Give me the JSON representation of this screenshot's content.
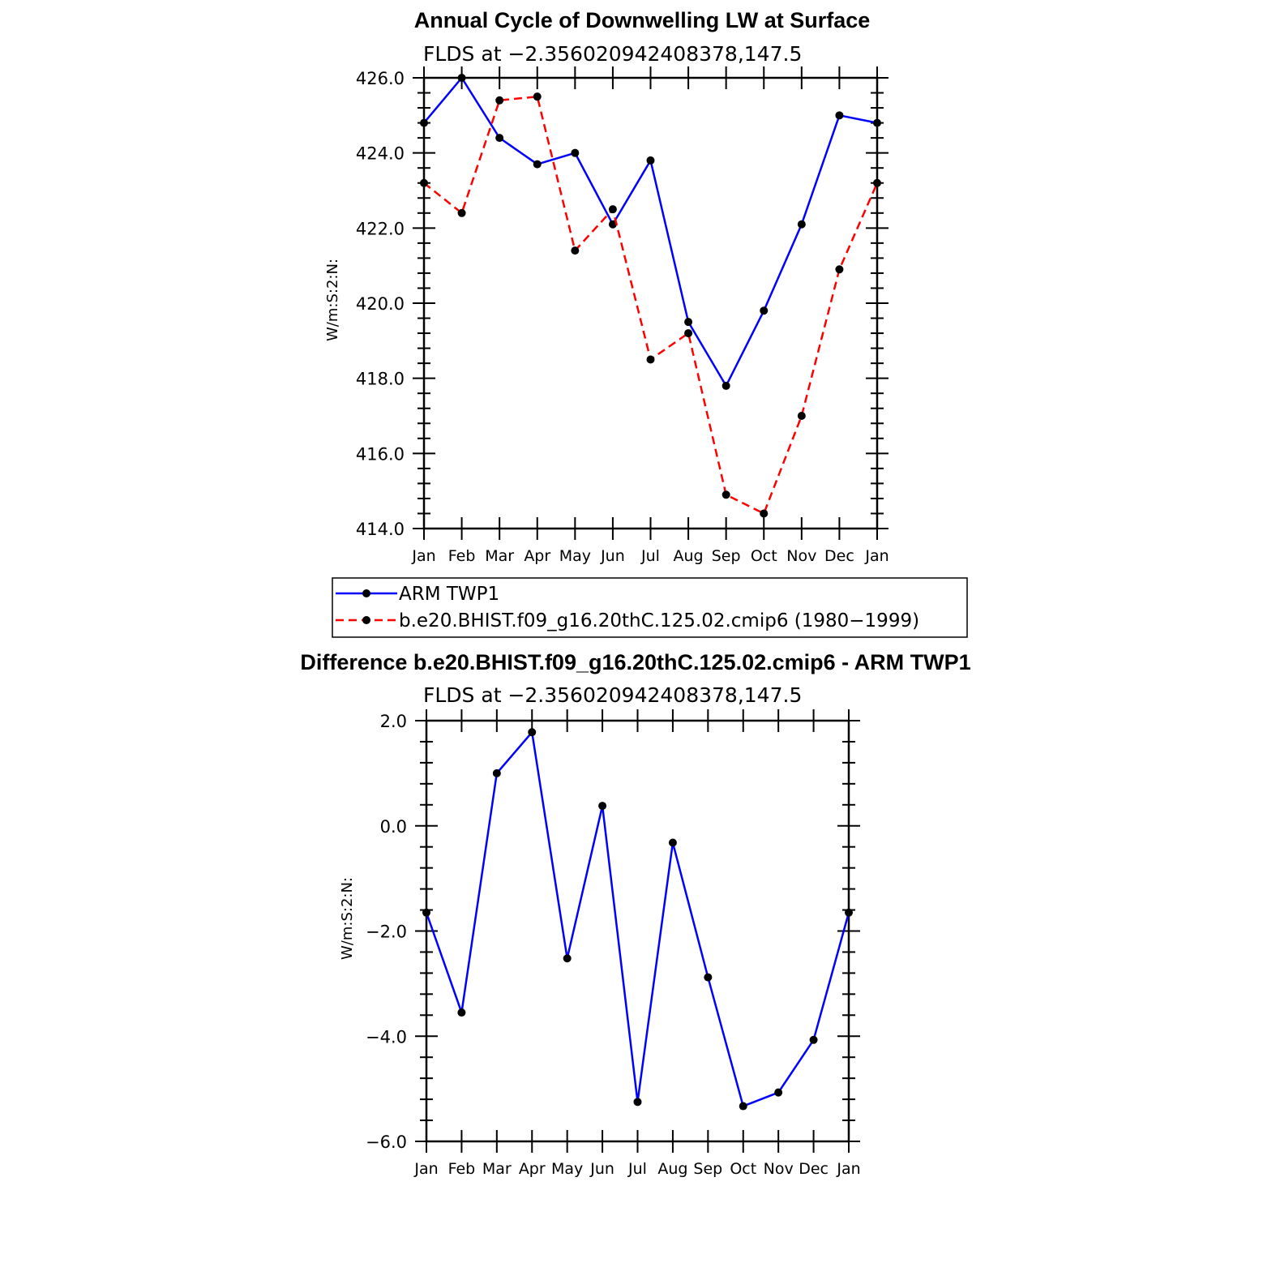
{
  "chart_data": [
    {
      "type": "line",
      "title": "Annual Cycle of Downwelling LW at Surface",
      "subtitle": "FLDS at −2.356020942408378,147.5",
      "xlabel": "",
      "ylabel": "W/m:S:2:N:",
      "categories": [
        "Jan",
        "Feb",
        "Mar",
        "Apr",
        "May",
        "Jun",
        "Jul",
        "Aug",
        "Sep",
        "Oct",
        "Nov",
        "Dec",
        "Jan"
      ],
      "ylim": [
        414.0,
        426.0
      ],
      "yticks": [
        "414.0",
        "416.0",
        "418.0",
        "420.0",
        "422.0",
        "424.0",
        "426.0"
      ],
      "grid": false,
      "legend_position": "below",
      "series": [
        {
          "name": "ARM TWP1",
          "color": "#0000ff",
          "style": "solid",
          "values": [
            424.8,
            426.0,
            424.4,
            423.7,
            424.0,
            422.1,
            423.8,
            419.5,
            417.8,
            419.8,
            422.1,
            425.0,
            424.8
          ]
        },
        {
          "name": "b.e20.BHIST.f09_g16.20thC.125.02.cmip6 (1980−1999)",
          "color": "#ff0000",
          "style": "dashed",
          "values": [
            423.2,
            422.4,
            425.4,
            425.5,
            421.4,
            422.5,
            418.5,
            419.2,
            414.9,
            414.4,
            417.0,
            420.9,
            423.2
          ]
        }
      ]
    },
    {
      "type": "line",
      "title": "Difference b.e20.BHIST.f09_g16.20thC.125.02.cmip6 - ARM TWP1",
      "subtitle": "FLDS at −2.356020942408378,147.5",
      "xlabel": "",
      "ylabel": "W/m:S:2:N:",
      "categories": [
        "Jan",
        "Feb",
        "Mar",
        "Apr",
        "May",
        "Jun",
        "Jul",
        "Aug",
        "Sep",
        "Oct",
        "Nov",
        "Dec",
        "Jan"
      ],
      "ylim": [
        -6.0,
        2.0
      ],
      "yticks": [
        "−6.0",
        "−4.0",
        "−2.0",
        "0.0",
        "2.0"
      ],
      "grid": false,
      "series": [
        {
          "name": "",
          "color": "#0000ff",
          "style": "solid",
          "values": [
            -1.65,
            -3.55,
            1.0,
            1.78,
            -2.52,
            0.38,
            -5.25,
            -0.32,
            -2.88,
            -5.33,
            -5.07,
            -4.07,
            -1.65
          ]
        }
      ]
    }
  ]
}
